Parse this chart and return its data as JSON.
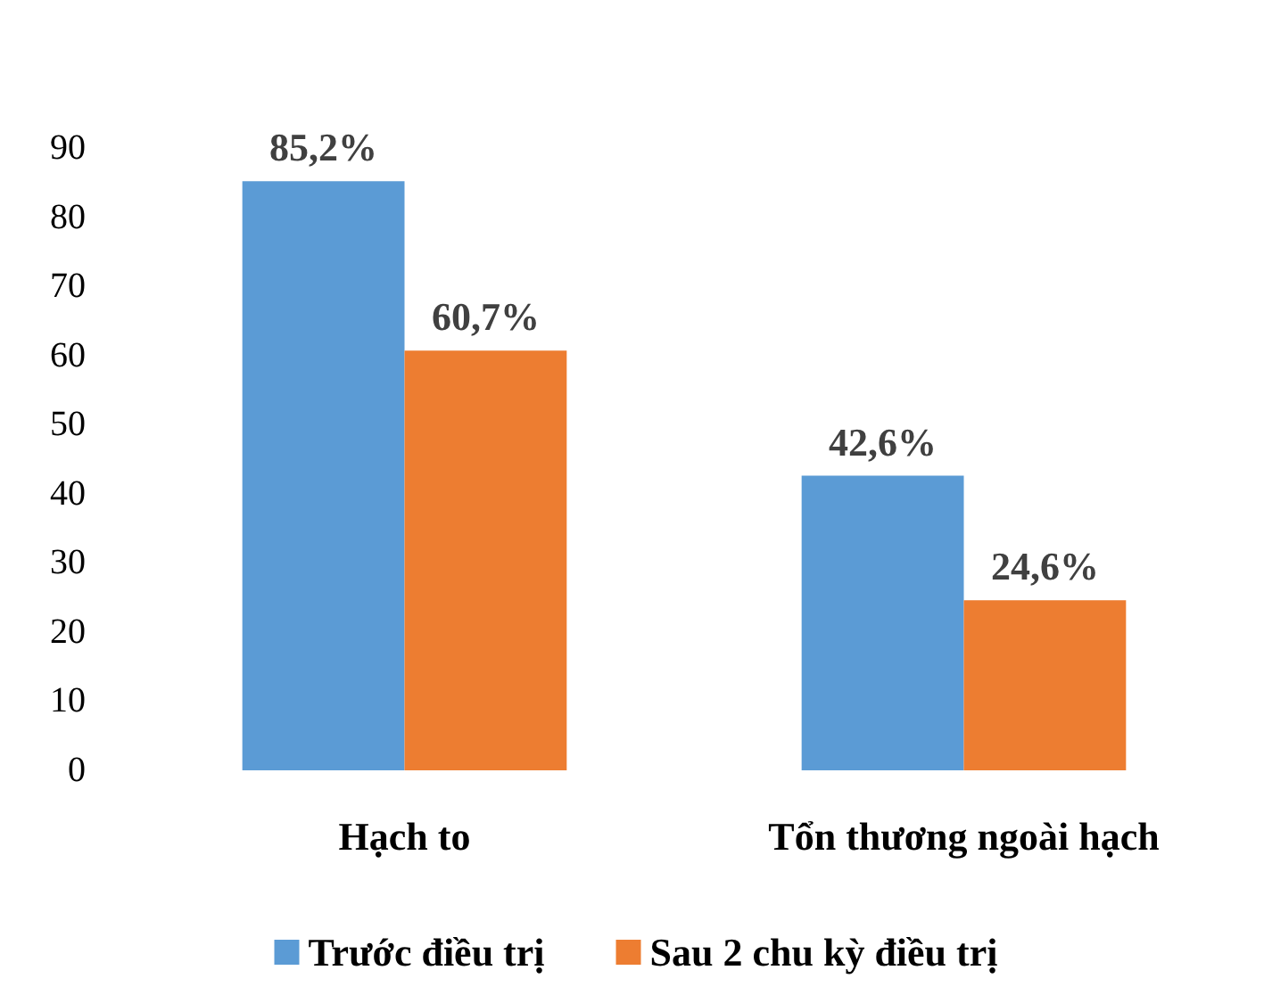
{
  "chart_data": {
    "type": "bar",
    "categories": [
      "Hạch to",
      "Tổn thương ngoài hạch"
    ],
    "series": [
      {
        "name": "Trước điều trị",
        "color": "#5b9bd5",
        "values": [
          85.2,
          42.6
        ],
        "value_labels": [
          "85,2%",
          "42,6%"
        ]
      },
      {
        "name": "Sau 2 chu kỳ điều trị",
        "color": "#ed7d31",
        "values": [
          60.7,
          24.6
        ],
        "value_labels": [
          "60,7%",
          "24,6%"
        ]
      }
    ],
    "ylim": [
      0,
      90
    ],
    "yticks": [
      0,
      10,
      20,
      30,
      40,
      50,
      60,
      70,
      80,
      90
    ],
    "legend": "bottom"
  }
}
